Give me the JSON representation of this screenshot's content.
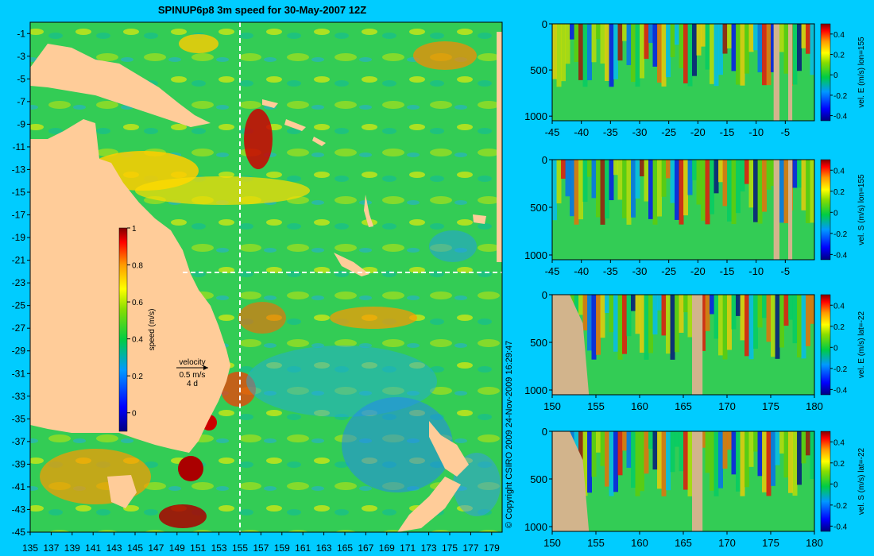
{
  "title": "SPINUP6p8 3m speed for 30-May-2007 12Z",
  "copyright": "© Copyright CSIRO 2009   24-Nov-2009 16:29:47",
  "colors": {
    "background": "#00ccff",
    "land_map": "#ffcc99",
    "land_section": "#d2b48c",
    "dashed_lines": "#ffffff"
  },
  "chart_data": [
    {
      "type": "heatmap",
      "name": "speed-map",
      "x": [
        135,
        137,
        139,
        141,
        143,
        145,
        147,
        149,
        151,
        153,
        155,
        157,
        159,
        161,
        163,
        165,
        167,
        169,
        171,
        173,
        175,
        177,
        179
      ],
      "y": [
        -1,
        -3,
        -5,
        -7,
        -9,
        -11,
        -13,
        -15,
        -17,
        -19,
        -21,
        -23,
        -25,
        -27,
        -29,
        -31,
        -33,
        -35,
        -37,
        -39,
        -41,
        -43,
        -45
      ],
      "xlim": [
        135,
        180
      ],
      "ylim": [
        -45,
        0
      ],
      "section_lines": {
        "lon": 155,
        "lat": -22
      },
      "colorbar": {
        "label": "speed (m/s)",
        "ticks": [
          "1",
          "0.8",
          "0.6",
          "0.4",
          "0.2",
          "0"
        ],
        "tick_values": [
          1,
          0.8,
          0.6,
          0.4,
          0.2,
          0
        ],
        "range": [
          -0.1,
          1
        ]
      },
      "velocity_key": {
        "line1": "velocity",
        "line2": "0.5 m/s",
        "line3": "4 d"
      }
    },
    {
      "type": "heatmap",
      "name": "section-velE-lon155",
      "colorbar_label": "vel. E (m/s) lon=155",
      "x": [
        -45,
        -40,
        -35,
        -30,
        -25,
        -20,
        -15,
        -10,
        -5
      ],
      "x_labels": [
        "-45",
        "-40",
        "-35",
        "-30",
        "-25",
        "-20",
        "-15",
        "-10",
        "-5"
      ],
      "xlim": [
        -45,
        0
      ],
      "y": [
        0,
        500,
        1000
      ],
      "ylim": [
        0,
        1050
      ],
      "cbar_ticks": [
        "0.4",
        "0.2",
        "0",
        "-0.2",
        "-0.4"
      ],
      "cbar_range": [
        -0.45,
        0.5
      ]
    },
    {
      "type": "heatmap",
      "name": "section-velS-lon155",
      "colorbar_label": "vel. S (m/s) lon=155",
      "x": [
        -45,
        -40,
        -35,
        -30,
        -25,
        -20,
        -15,
        -10,
        -5
      ],
      "x_labels": [
        "-45",
        "-40",
        "-35",
        "-30",
        "-25",
        "-20",
        "-15",
        "-10",
        "-5"
      ],
      "xlim": [
        -45,
        0
      ],
      "y": [
        0,
        500,
        1000
      ],
      "ylim": [
        0,
        1050
      ],
      "cbar_ticks": [
        "0.4",
        "0.2",
        "0",
        "-0.2",
        "-0.4"
      ],
      "cbar_range": [
        -0.45,
        0.5
      ]
    },
    {
      "type": "heatmap",
      "name": "section-velE-lat-22",
      "colorbar_label": "vel. E (m/s) lat=-22",
      "x": [
        150,
        155,
        160,
        165,
        170,
        175,
        180
      ],
      "x_labels": [
        "150",
        "155",
        "160",
        "165",
        "170",
        "175",
        "180"
      ],
      "xlim": [
        150,
        180
      ],
      "y": [
        0,
        500,
        1000
      ],
      "ylim": [
        0,
        1050
      ],
      "cbar_ticks": [
        "0.4",
        "0.2",
        "0",
        "-0.2",
        "-0.4"
      ],
      "cbar_range": [
        -0.45,
        0.5
      ]
    },
    {
      "type": "heatmap",
      "name": "section-velS-lat-22",
      "colorbar_label": "vel. S (m/s) lat=-22",
      "x": [
        150,
        155,
        160,
        165,
        170,
        175,
        180
      ],
      "x_labels": [
        "150",
        "155",
        "160",
        "165",
        "170",
        "175",
        "180"
      ],
      "xlim": [
        150,
        180
      ],
      "y": [
        0,
        500,
        1000
      ],
      "ylim": [
        0,
        1050
      ],
      "cbar_ticks": [
        "0.4",
        "0.2",
        "0",
        "-0.2",
        "-0.4"
      ],
      "cbar_range": [
        -0.45,
        0.5
      ]
    }
  ]
}
